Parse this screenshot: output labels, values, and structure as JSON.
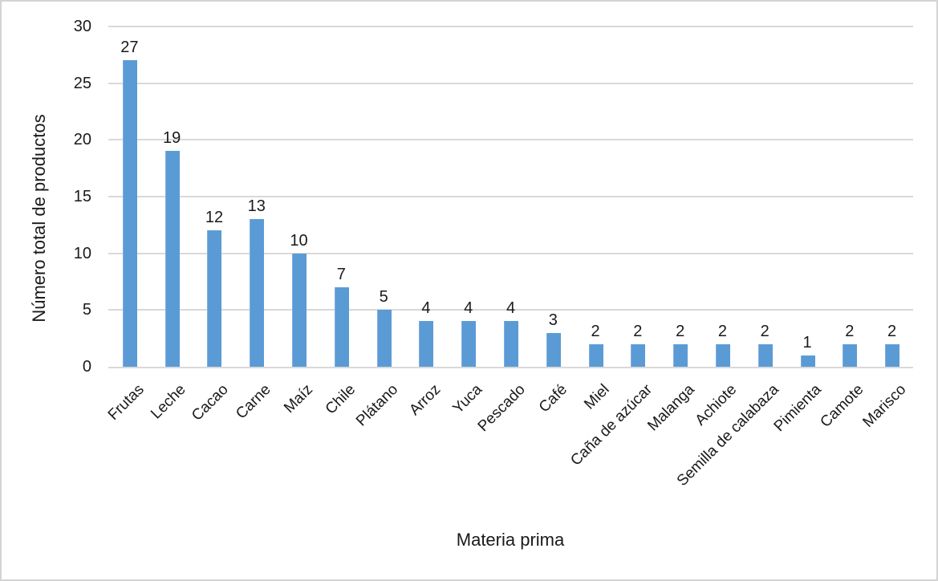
{
  "chart_data": {
    "type": "bar",
    "title": "",
    "categories": [
      "Frutas",
      "Leche",
      "Cacao",
      "Carne",
      "Maíz",
      "Chile",
      "Plátano",
      "Arroz",
      "Yuca",
      "Pescado",
      "Café",
      "Miel",
      "Caña de azúcar",
      "Malanga",
      "Achiote",
      "Semilla de calabaza",
      "Pimienta",
      "Camote",
      "Marisco"
    ],
    "values": [
      27,
      19,
      12,
      13,
      10,
      7,
      5,
      4,
      4,
      4,
      3,
      2,
      2,
      2,
      2,
      2,
      1,
      2,
      2
    ],
    "xlabel": "Materia prima",
    "ylabel": "Número total de productos",
    "ylim": [
      0,
      30
    ],
    "yticks": [
      0,
      5,
      10,
      15,
      20,
      25,
      30
    ],
    "grid": true,
    "legend": false,
    "data_labels_shown": true,
    "bar_color": "#5b9bd5",
    "gridline_color": "#d9d9d9",
    "text_color": "#1a1a1a"
  }
}
